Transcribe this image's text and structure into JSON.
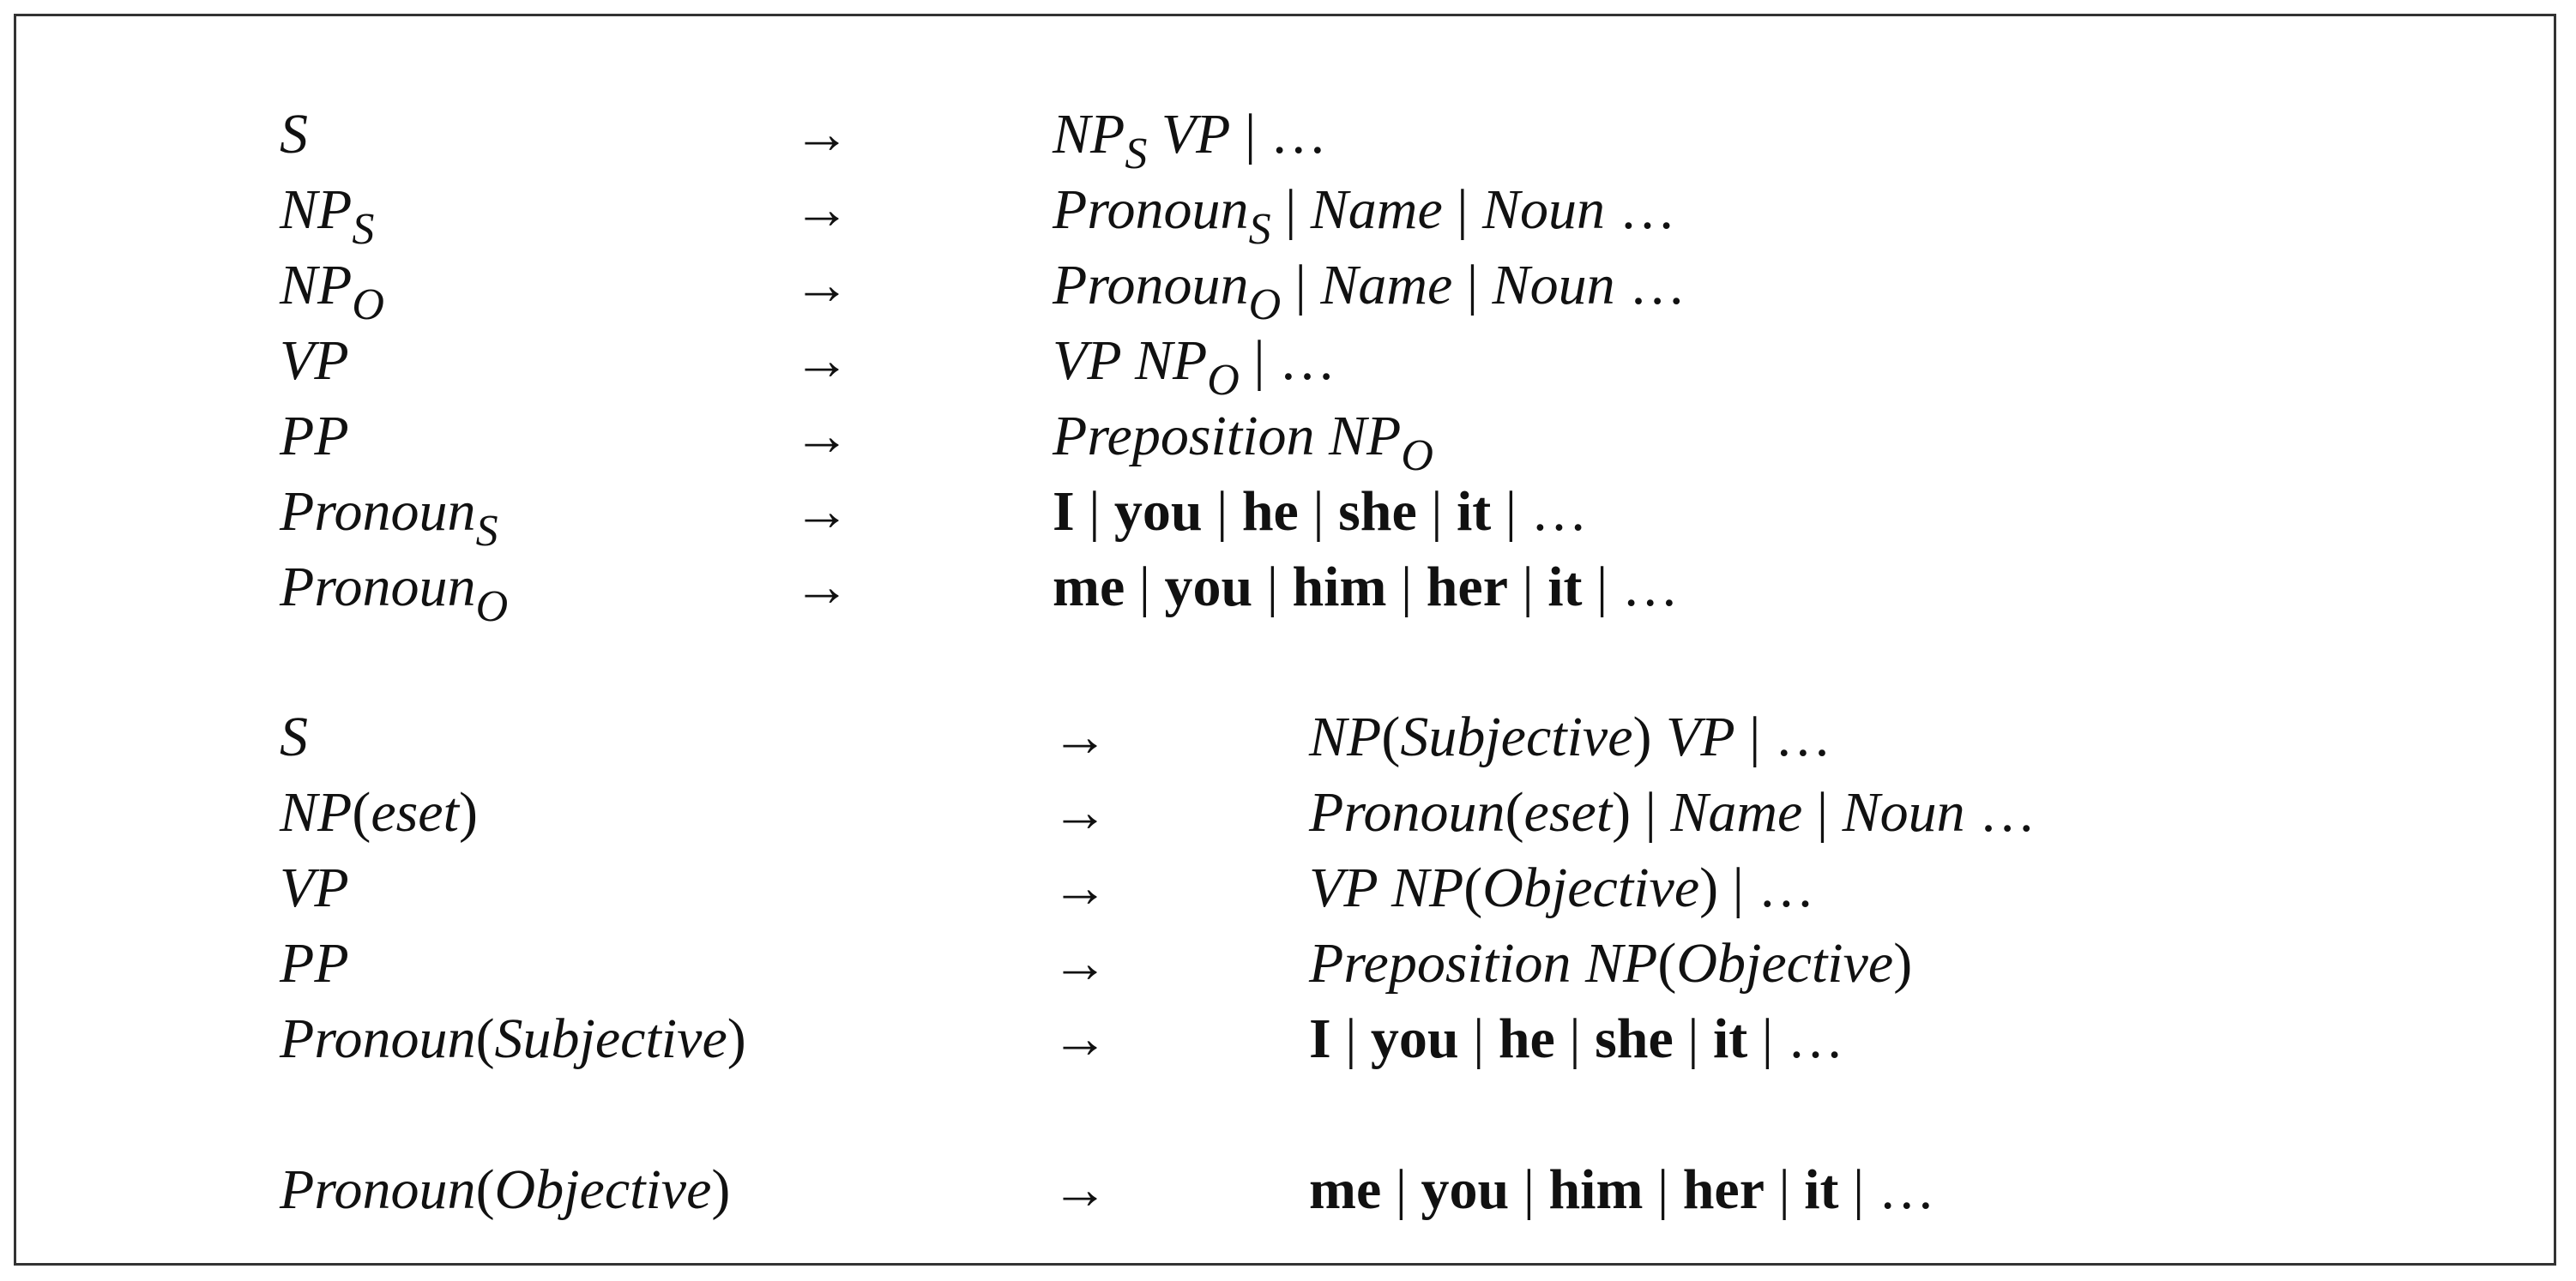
{
  "grammar1": [
    {
      "lhs": [
        {
          "t": "S",
          "s": "i"
        }
      ],
      "arrow": "→",
      "rhs": [
        {
          "t": "NP",
          "s": "i"
        },
        {
          "t": "S",
          "s": "sub"
        },
        {
          "t": " VP",
          "s": "i"
        },
        {
          "t": " | …",
          "s": "n"
        }
      ]
    },
    {
      "lhs": [
        {
          "t": "NP",
          "s": "i"
        },
        {
          "t": "S",
          "s": "sub"
        }
      ],
      "arrow": "→",
      "rhs": [
        {
          "t": "Pronoun",
          "s": "i"
        },
        {
          "t": "S",
          "s": "sub"
        },
        {
          "t": " | ",
          "s": "n"
        },
        {
          "t": "Name",
          "s": "i"
        },
        {
          "t": " | ",
          "s": "n"
        },
        {
          "t": "Noun",
          "s": "i"
        },
        {
          "t": " …",
          "s": "n"
        }
      ]
    },
    {
      "lhs": [
        {
          "t": "NP",
          "s": "i"
        },
        {
          "t": "O",
          "s": "sub"
        }
      ],
      "arrow": "→",
      "rhs": [
        {
          "t": "Pronoun",
          "s": "i"
        },
        {
          "t": "O",
          "s": "sub"
        },
        {
          "t": " | ",
          "s": "n"
        },
        {
          "t": "Name",
          "s": "i"
        },
        {
          "t": " | ",
          "s": "n"
        },
        {
          "t": "Noun",
          "s": "i"
        },
        {
          "t": " …",
          "s": "n"
        }
      ]
    },
    {
      "lhs": [
        {
          "t": "VP",
          "s": "i"
        }
      ],
      "arrow": "→",
      "rhs": [
        {
          "t": "VP NP",
          "s": "i"
        },
        {
          "t": "O",
          "s": "sub"
        },
        {
          "t": " | …",
          "s": "n"
        }
      ]
    },
    {
      "lhs": [
        {
          "t": "PP",
          "s": "i"
        }
      ],
      "arrow": "→",
      "rhs": [
        {
          "t": "Preposition NP",
          "s": "i"
        },
        {
          "t": "O",
          "s": "sub"
        }
      ]
    },
    {
      "lhs": [
        {
          "t": "Pronoun",
          "s": "i"
        },
        {
          "t": "S",
          "s": "sub"
        }
      ],
      "arrow": "→",
      "rhs": [
        {
          "t": "I",
          "s": "b"
        },
        {
          "t": " | ",
          "s": "n"
        },
        {
          "t": "you",
          "s": "b"
        },
        {
          "t": " | ",
          "s": "n"
        },
        {
          "t": "he",
          "s": "b"
        },
        {
          "t": " | ",
          "s": "n"
        },
        {
          "t": "she",
          "s": "b"
        },
        {
          "t": " | ",
          "s": "n"
        },
        {
          "t": "it",
          "s": "b"
        },
        {
          "t": " | …",
          "s": "n"
        }
      ]
    },
    {
      "lhs": [
        {
          "t": "Pronoun",
          "s": "i"
        },
        {
          "t": "O",
          "s": "sub"
        }
      ],
      "arrow": "→",
      "rhs": [
        {
          "t": "me",
          "s": "b"
        },
        {
          "t": " | ",
          "s": "n"
        },
        {
          "t": "you",
          "s": "b"
        },
        {
          "t": " | ",
          "s": "n"
        },
        {
          "t": "him",
          "s": "b"
        },
        {
          "t": " | ",
          "s": "n"
        },
        {
          "t": "her",
          "s": "b"
        },
        {
          "t": " | ",
          "s": "n"
        },
        {
          "t": "it",
          "s": "b"
        },
        {
          "t": " | …",
          "s": "n"
        }
      ]
    }
  ],
  "grammar2": [
    {
      "lhs": [
        {
          "t": "S",
          "s": "i"
        }
      ],
      "arrow": "→",
      "rhs": [
        {
          "t": "NP",
          "s": "i"
        },
        {
          "t": "(",
          "s": "n"
        },
        {
          "t": "Subjective",
          "s": "i"
        },
        {
          "t": ")",
          "s": "n"
        },
        {
          "t": " VP",
          "s": "i"
        },
        {
          "t": " | …",
          "s": "n"
        }
      ]
    },
    {
      "lhs": [
        {
          "t": "NP",
          "s": "i"
        },
        {
          "t": "(",
          "s": "n"
        },
        {
          "t": "eset",
          "s": "i"
        },
        {
          "t": ")",
          "s": "n"
        }
      ],
      "arrow": "→",
      "rhs": [
        {
          "t": "Pronoun",
          "s": "i"
        },
        {
          "t": "(",
          "s": "n"
        },
        {
          "t": "eset",
          "s": "i"
        },
        {
          "t": ")",
          "s": "n"
        },
        {
          "t": " | ",
          "s": "n"
        },
        {
          "t": "Name",
          "s": "i"
        },
        {
          "t": " | ",
          "s": "n"
        },
        {
          "t": "Noun",
          "s": "i"
        },
        {
          "t": " …",
          "s": "n"
        }
      ]
    },
    {
      "lhs": [
        {
          "t": "VP",
          "s": "i"
        }
      ],
      "arrow": "→",
      "rhs": [
        {
          "t": "VP NP",
          "s": "i"
        },
        {
          "t": "(",
          "s": "n"
        },
        {
          "t": "Objective",
          "s": "i"
        },
        {
          "t": ")",
          "s": "n"
        },
        {
          "t": " | …",
          "s": "n"
        }
      ]
    },
    {
      "lhs": [
        {
          "t": "PP",
          "s": "i"
        }
      ],
      "arrow": "→",
      "rhs": [
        {
          "t": "Preposition NP",
          "s": "i"
        },
        {
          "t": "(",
          "s": "n"
        },
        {
          "t": "Objective",
          "s": "i"
        },
        {
          "t": ")",
          "s": "n"
        }
      ]
    },
    {
      "lhs": [
        {
          "t": "Pronoun",
          "s": "i"
        },
        {
          "t": "(",
          "s": "n"
        },
        {
          "t": "Subjective",
          "s": "i"
        },
        {
          "t": ")",
          "s": "n"
        }
      ],
      "arrow": "→",
      "rhs": [
        {
          "t": "I",
          "s": "b"
        },
        {
          "t": " | ",
          "s": "n"
        },
        {
          "t": "you",
          "s": "b"
        },
        {
          "t": " | ",
          "s": "n"
        },
        {
          "t": "he",
          "s": "b"
        },
        {
          "t": " | ",
          "s": "n"
        },
        {
          "t": "she",
          "s": "b"
        },
        {
          "t": " | ",
          "s": "n"
        },
        {
          "t": "it",
          "s": "b"
        },
        {
          "t": " | …",
          "s": "n"
        }
      ]
    },
    {
      "lhs": [
        {
          "t": "Pronoun",
          "s": "i"
        },
        {
          "t": "(",
          "s": "n"
        },
        {
          "t": "Objective",
          "s": "i"
        },
        {
          "t": ")",
          "s": "n"
        }
      ],
      "arrow": "→",
      "rhs": [
        {
          "t": "me",
          "s": "b"
        },
        {
          "t": " | ",
          "s": "n"
        },
        {
          "t": "you",
          "s": "b"
        },
        {
          "t": " | ",
          "s": "n"
        },
        {
          "t": "him",
          "s": "b"
        },
        {
          "t": " | ",
          "s": "n"
        },
        {
          "t": "her",
          "s": "b"
        },
        {
          "t": " | ",
          "s": "n"
        },
        {
          "t": "it",
          "s": "b"
        },
        {
          "t": " | …",
          "s": "n"
        }
      ]
    }
  ]
}
